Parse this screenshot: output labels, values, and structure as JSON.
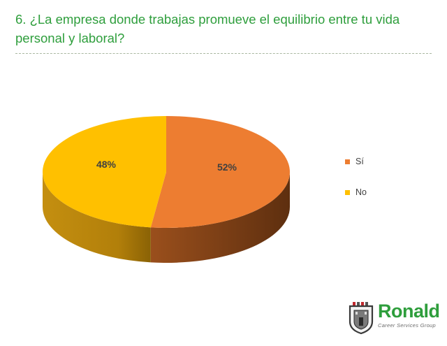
{
  "slide": {
    "title": "6.  ¿La empresa donde trabajas promueve el equilibrio entre tu vida personal y laboral?"
  },
  "chart_data": {
    "type": "pie",
    "title": "",
    "three_d": true,
    "categories": [
      "Sí",
      "No"
    ],
    "values": [
      52,
      48
    ],
    "data_labels": [
      "52%",
      "48%"
    ],
    "colors": [
      "#ED7D31",
      "#FFC000"
    ],
    "legend_position": "right"
  },
  "logo": {
    "word": "Ronald",
    "tagline": "Career Services Group",
    "icon": "castle-shield-icon"
  }
}
